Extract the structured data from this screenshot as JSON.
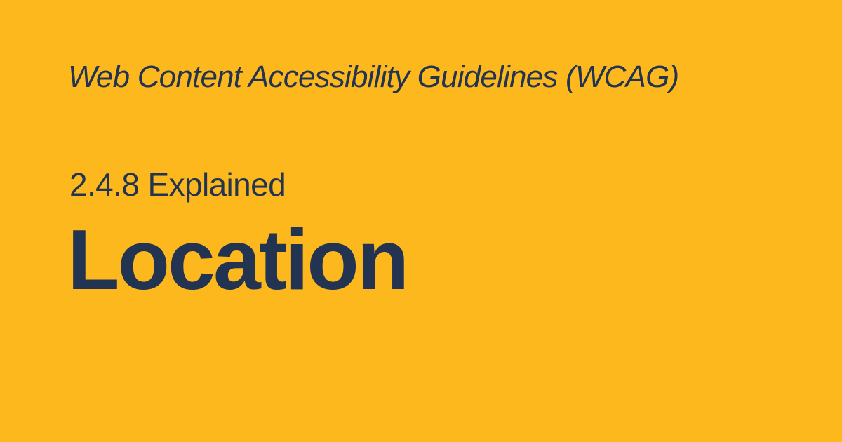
{
  "card": {
    "kicker": "Web Content Accessibility Guidelines (WCAG)",
    "subtitle": "2.4.8 Explained",
    "title": "Location"
  },
  "colors": {
    "background": "#FDB81E",
    "text": "#223452"
  }
}
